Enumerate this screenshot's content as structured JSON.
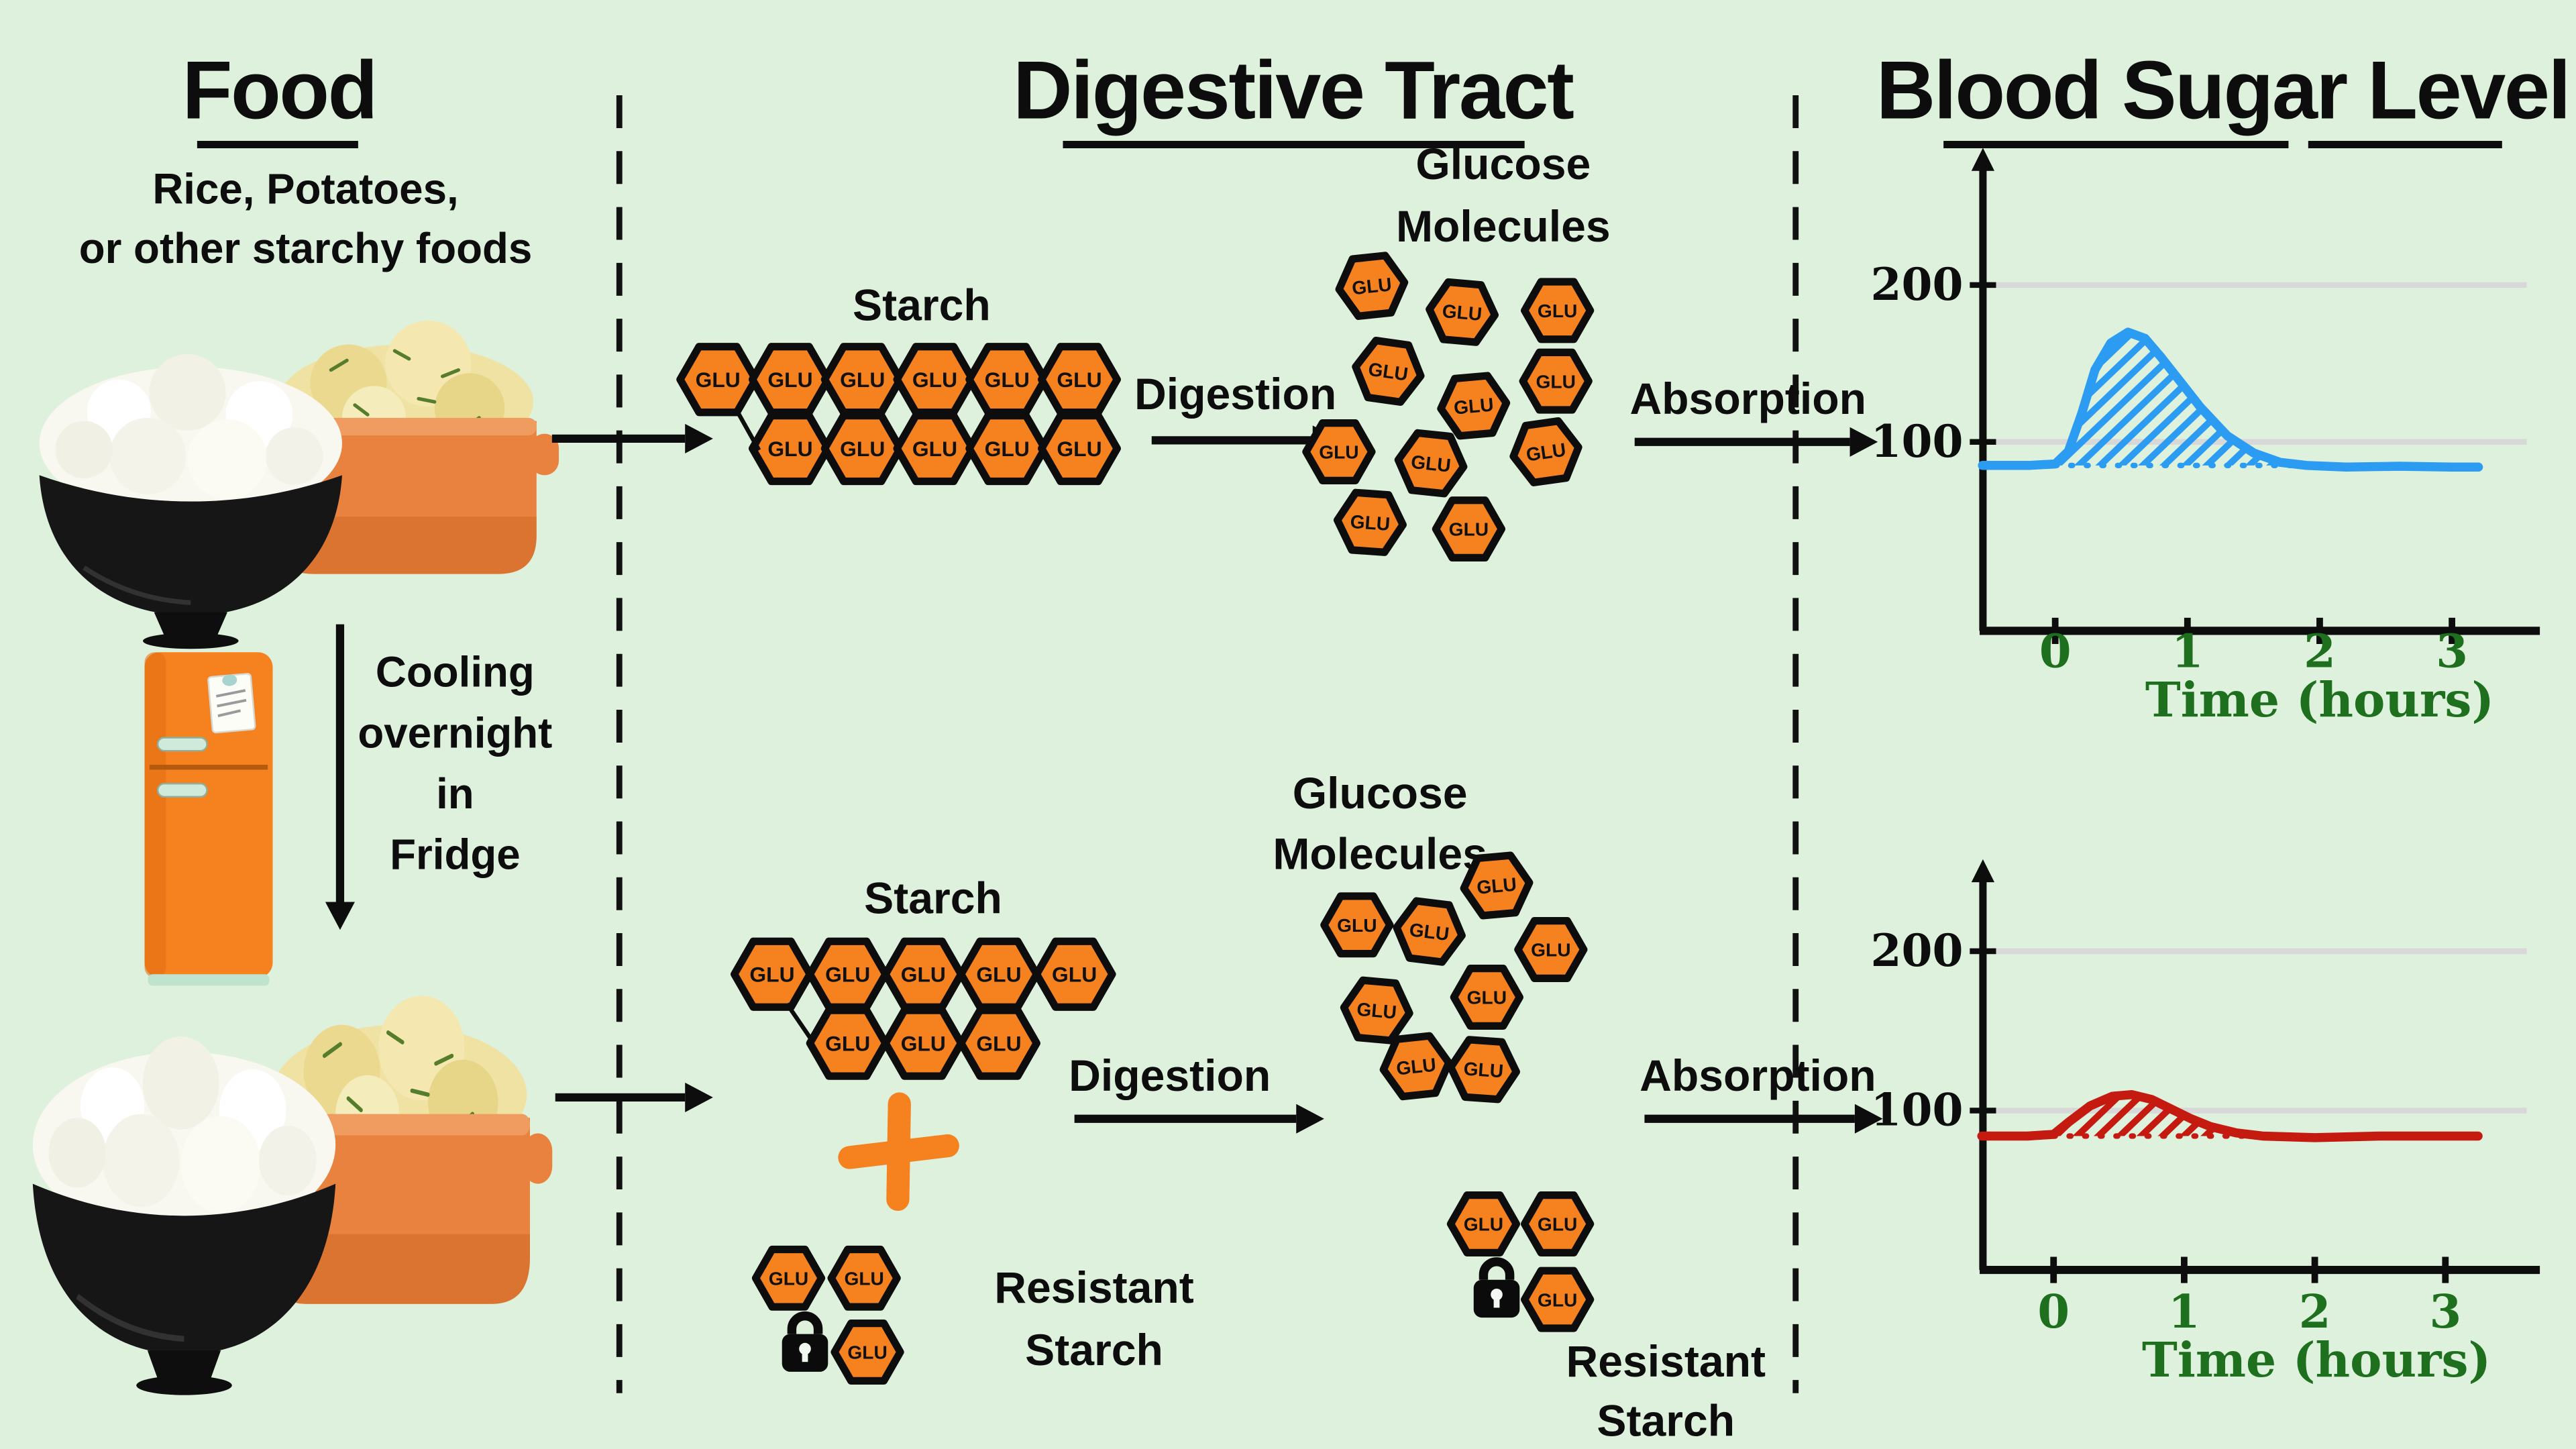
{
  "glu_label": "GLU",
  "headers": {
    "food": "Food",
    "digestive_tract": "Digestive Tract",
    "blood_sugar": "Blood Sugar Level"
  },
  "food_column": {
    "caption_line1": "Rice, Potatoes,",
    "caption_line2": "or other starchy foods",
    "cooling_lines": [
      "Cooling",
      "overnight",
      "in",
      "Fridge"
    ]
  },
  "top_path": {
    "starch_label": "Starch",
    "digestion_label": "Digestion",
    "glucose_line1": "Glucose",
    "glucose_line2": "Molecules",
    "absorption_label": "Absorption"
  },
  "bottom_path": {
    "starch_label": "Starch",
    "plus_sign": "+",
    "digestion_label": "Digestion",
    "glucose_line1": "Glucose",
    "glucose_line2": "Molecules",
    "absorption_label": "Absorption",
    "resistant_line1": "Resistant",
    "resistant_line2": "Starch"
  },
  "molecules": {
    "cooked_chain_rows": [
      6,
      5
    ],
    "cooled_chain_rows": [
      5,
      3
    ],
    "glucose_cluster_top_count": 11,
    "glucose_cluster_bottom_count": 8,
    "resistant_left_count": 3,
    "resistant_right_count": 3
  },
  "colors": {
    "background": "#ddf1dd",
    "hexagon_fill": "#f5811f",
    "outline": "#0d0d0d",
    "top_curve": "#2b9cf2",
    "bottom_curve": "#c41a10",
    "axis_text_green": "#1e6f1e",
    "gridline": "#d8d8d8",
    "fridge_orange": "#f5811f"
  },
  "chart_data": [
    {
      "type": "area",
      "xlabel": "Time (hours)",
      "xticks": [
        0,
        1,
        2,
        3
      ],
      "ytick_values": [
        100,
        200
      ],
      "xlim": [
        -0.55,
        3.65
      ],
      "ylim": [
        0,
        260
      ],
      "grid": true,
      "baseline": 85,
      "hatched": true,
      "hatch_end_hour": 1.78,
      "color": "#2b9cf2",
      "series": [
        {
          "x": [
            -0.55,
            -0.2,
            0,
            0.1,
            0.2,
            0.3,
            0.42,
            0.55,
            0.68,
            0.8,
            0.95,
            1.1,
            1.3,
            1.5,
            1.7,
            1.9,
            2.2,
            2.6,
            3.0,
            3.2
          ],
          "y": [
            85,
            85,
            86,
            94,
            118,
            146,
            163,
            170,
            166,
            154,
            138,
            122,
            104,
            93,
            87,
            85,
            84,
            84.5,
            84,
            84
          ]
        }
      ]
    },
    {
      "type": "area",
      "xlabel": "Time (hours)",
      "xticks": [
        0,
        1,
        2,
        3
      ],
      "ytick_values": [
        100,
        200
      ],
      "xlim": [
        -0.55,
        3.7
      ],
      "ylim": [
        0,
        260
      ],
      "grid": true,
      "baseline": 84,
      "hatched": true,
      "hatch_end_hour": 1.5,
      "color": "#c41a10",
      "series": [
        {
          "x": [
            -0.55,
            -0.2,
            0,
            0.12,
            0.28,
            0.45,
            0.6,
            0.75,
            0.9,
            1.05,
            1.2,
            1.4,
            1.6,
            2.0,
            2.5,
            3.0,
            3.25
          ],
          "y": [
            84,
            84,
            85,
            93,
            103,
            109,
            110,
            107,
            101,
            95,
            90,
            86,
            84,
            83,
            84,
            84,
            84
          ]
        }
      ]
    }
  ]
}
